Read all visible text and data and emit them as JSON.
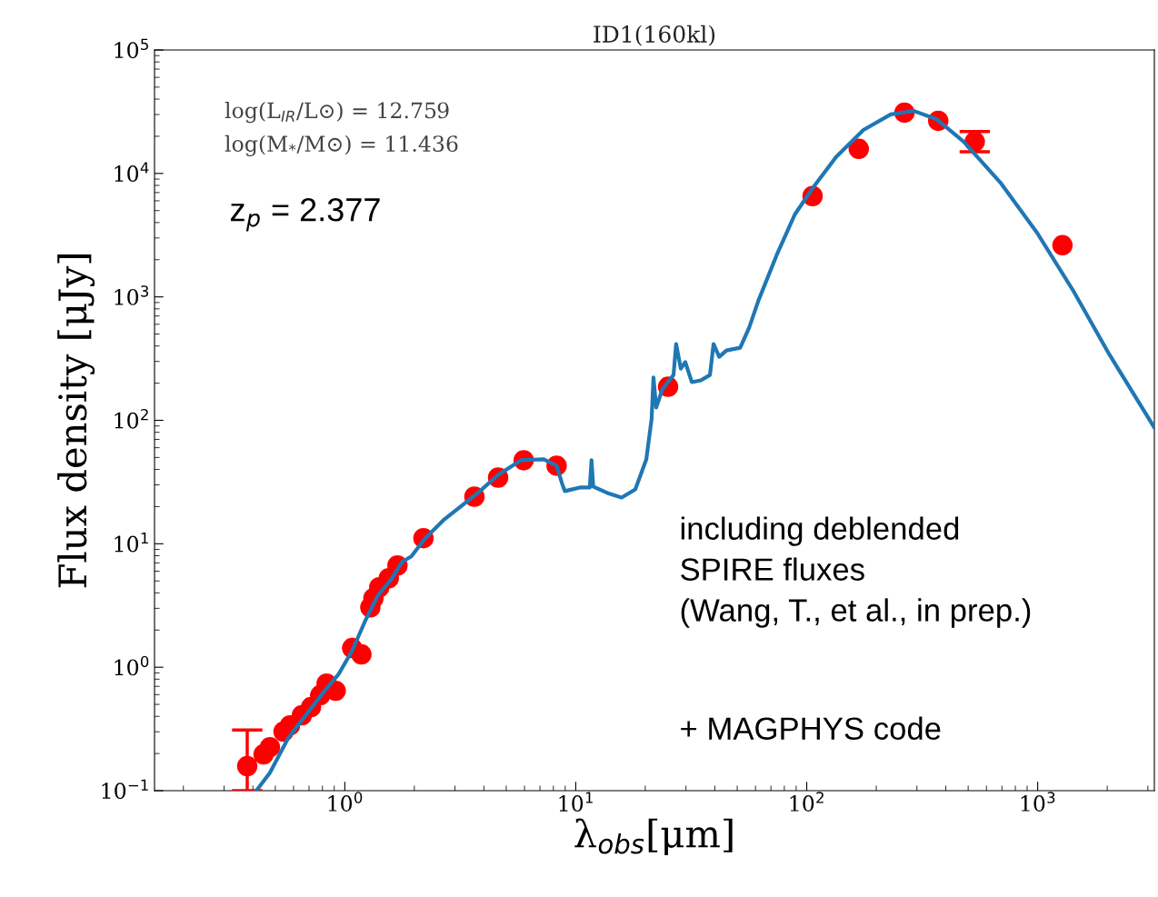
{
  "chart_data": {
    "type": "line",
    "title": "ID1(160kl)",
    "xlabel": "λ$_{obs}$[μm]",
    "ylabel": "Flux density [μJy]",
    "log": "xy",
    "grid": false,
    "legend": false,
    "xlim": [
      0.15,
      3200
    ],
    "ylim": [
      0.1,
      100000
    ],
    "xticks": [
      {
        "value": 1,
        "label": "10$^{0}$"
      },
      {
        "value": 10,
        "label": "10$^{1}$"
      },
      {
        "value": 100,
        "label": "10$^{2}$"
      },
      {
        "value": 1000,
        "label": "10$^{3}$"
      }
    ],
    "yticks": [
      {
        "value": 0.1,
        "label": "10$^{−1}$"
      },
      {
        "value": 1,
        "label": "10$^{0}$"
      },
      {
        "value": 10,
        "label": "10$^{1}$"
      },
      {
        "value": 100,
        "label": "10$^{2}$"
      },
      {
        "value": 1000,
        "label": "10$^{3}$"
      },
      {
        "value": 10000,
        "label": "10$^{4}$"
      },
      {
        "value": 100000,
        "label": "10$^{5}$"
      }
    ],
    "series": [
      {
        "color": "#1f77b4",
        "line_style": "solid",
        "marker": "none",
        "x": [
          0.414,
          0.474,
          0.569,
          0.682,
          0.818,
          0.938,
          1.076,
          1.23,
          1.39,
          1.58,
          1.77,
          1.94,
          2.23,
          2.67,
          3.21,
          3.85,
          4.61,
          5.79,
          7.27,
          8.26,
          8.73,
          8.97,
          10.5,
          11.5,
          11.7,
          11.9,
          13.7,
          15.8,
          18.1,
          20.2,
          21.3,
          21.7,
          22.3,
          23.7,
          26.5,
          27.2,
          28.5,
          29.8,
          31.8,
          34.8,
          38.1,
          39.5,
          41.8,
          44.9,
          51.5,
          56.3,
          61.8,
          74.1,
          88.9,
          107,
          134,
          176,
          231,
          290,
          364,
          478,
          689,
          991,
          1430,
          2050,
          3200
        ],
        "values": [
          0.1,
          0.14,
          0.267,
          0.415,
          0.644,
          0.873,
          1.36,
          2.41,
          3.81,
          5.08,
          7.13,
          7.89,
          11.1,
          15.5,
          20.4,
          26.7,
          36.2,
          47.5,
          48.3,
          42.9,
          30.6,
          26.7,
          28.6,
          28.6,
          47.5,
          29.1,
          25.8,
          23.7,
          27.6,
          48.3,
          103,
          222,
          127,
          178,
          233,
          415,
          262,
          296,
          204,
          211,
          233,
          415,
          327,
          368,
          387,
          562,
          935,
          2180,
          4670,
          7760,
          13600,
          22500,
          30100,
          32100,
          27600,
          18100,
          8440,
          3330,
          1110,
          338,
          87.3
        ]
      },
      {
        "type": "scatter",
        "color": "#ff0000",
        "marker": "circle",
        "x": [
          0.378,
          0.445,
          0.474,
          0.543,
          0.579,
          0.652,
          0.714,
          0.782,
          0.834,
          0.913,
          1.076,
          1.18,
          1.29,
          1.33,
          1.41,
          1.55,
          1.69,
          2.19,
          3.64,
          4.61,
          5.95,
          8.26,
          25.1,
          106,
          168,
          265,
          371,
          534,
          1280
        ],
        "values": [
          0.158,
          0.197,
          0.225,
          0.301,
          0.338,
          0.408,
          0.475,
          0.592,
          0.737,
          0.644,
          1.43,
          1.27,
          3.06,
          3.62,
          4.44,
          5.26,
          6.66,
          11.1,
          24.1,
          34.4,
          47.5,
          42.9,
          187,
          6550,
          15800,
          31100,
          26700,
          18100,
          2620
        ],
        "errors": [
          [
            0.1,
            0.31
          ],
          null,
          null,
          null,
          null,
          null,
          null,
          null,
          null,
          null,
          null,
          null,
          null,
          null,
          null,
          null,
          null,
          null,
          null,
          null,
          null,
          null,
          null,
          null,
          null,
          null,
          null,
          [
            15000,
            21800
          ],
          null
        ]
      }
    ],
    "annotations": [
      "log(L$_{IR}$/L⊙) = 12.759",
      "log(M$_{*}$/M⊙) = 11.436",
      "z$_{p}$ = 2.377",
      "including deblended\nSPIRE fluxes\n(Wang, T., et al., in prep.)",
      "+ MAGPHYS code"
    ]
  }
}
